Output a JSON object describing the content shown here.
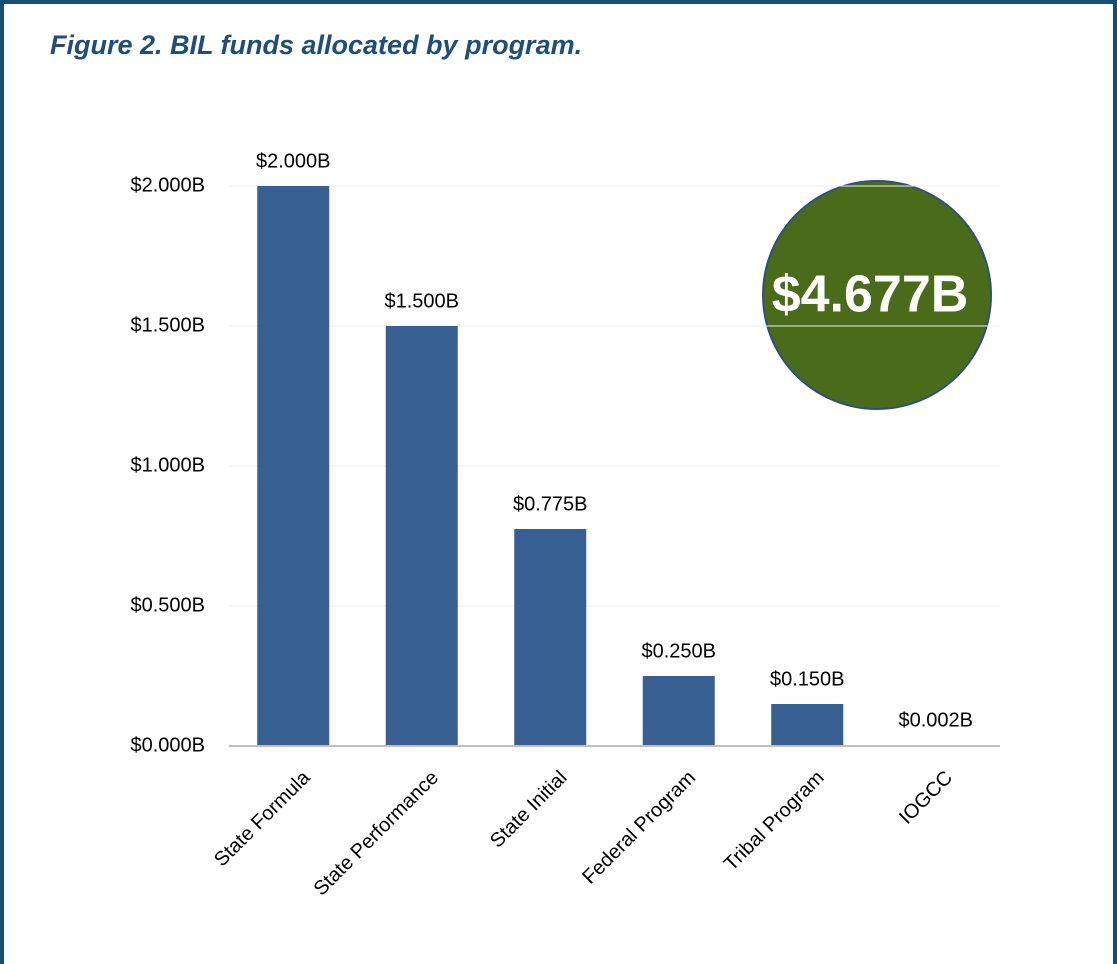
{
  "chart_data": {
    "type": "bar",
    "title": "Figure 2. BIL funds allocated by program.",
    "categories": [
      "State Formula",
      "State Performance",
      "State Initial",
      "Federal Program",
      "Tribal Program",
      "IOGCC"
    ],
    "values": [
      2.0,
      1.5,
      0.775,
      0.25,
      0.15,
      0.002
    ],
    "value_labels": [
      "$2.000B",
      "$1.500B",
      "$0.775B",
      "$0.250B",
      "$0.150B",
      "$0.002B"
    ],
    "color": "#375f92",
    "ylim": [
      0,
      2
    ],
    "yticks": [
      {
        "value": 0,
        "label": "$0.000B"
      },
      {
        "value": 0.5,
        "label": "$0.500B"
      },
      {
        "value": 1,
        "label": "$1.000B"
      },
      {
        "value": 1.5,
        "label": "$1.500B"
      },
      {
        "value": 2,
        "label": "$2.000B"
      }
    ],
    "grid": true,
    "annotation": "$4.677B"
  }
}
